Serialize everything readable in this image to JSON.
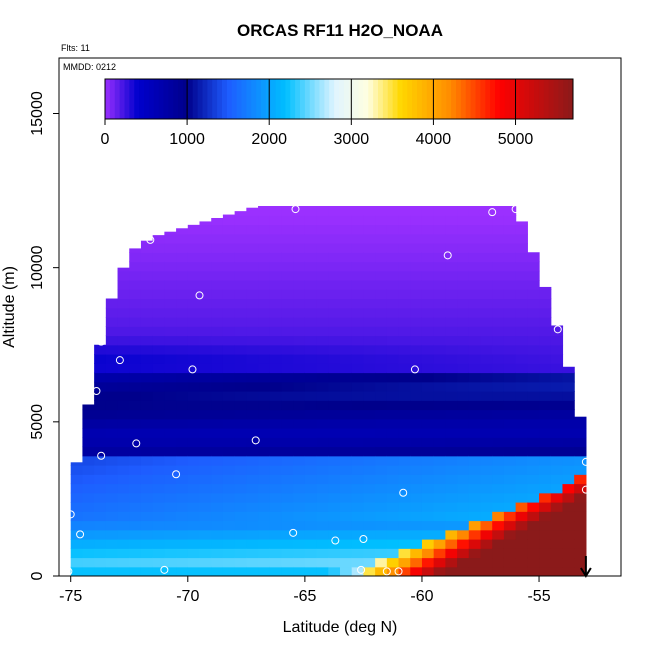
{
  "chart_data": {
    "type": "heatmap",
    "title": "ORCAS RF11 H2O_NOAA",
    "annotations": {
      "flights": "Flts: 11",
      "date": "MMDD: 0212"
    },
    "xlabel": "Latitude (deg N)",
    "ylabel": "Altitude (m)",
    "xlim": [
      -75.5,
      -51.5
    ],
    "ylim": [
      0,
      16800
    ],
    "x_ticks": [
      -75,
      -70,
      -65,
      -60,
      -55
    ],
    "x_tick_labels": [
      "-75",
      "-70",
      "-65",
      "-60",
      "-55"
    ],
    "y_ticks": [
      0,
      5000,
      10000,
      15000
    ],
    "y_tick_labels": [
      "0",
      "5000",
      "10000",
      "15000"
    ],
    "colorbar": {
      "range": [
        0,
        5700
      ],
      "ticks": [
        0,
        1000,
        2000,
        3000,
        4000,
        5000
      ],
      "tick_labels": [
        "0",
        "1000",
        "2000",
        "3000",
        "4000",
        "5000"
      ],
      "colors": [
        {
          "v": 0,
          "c": "#9b30ff"
        },
        {
          "v": 400,
          "c": "#0000cd"
        },
        {
          "v": 1000,
          "c": "#00008b"
        },
        {
          "v": 1500,
          "c": "#1e5cff"
        },
        {
          "v": 2200,
          "c": "#00bfff"
        },
        {
          "v": 2800,
          "c": "#e0f4ff"
        },
        {
          "v": 3200,
          "c": "#ffffe0"
        },
        {
          "v": 3600,
          "c": "#ffd700"
        },
        {
          "v": 4200,
          "c": "#ff8c00"
        },
        {
          "v": 4800,
          "c": "#ff0000"
        },
        {
          "v": 5700,
          "c": "#8b1a1a"
        }
      ]
    },
    "field_extent": {
      "lat_min": -75.0,
      "lat_max": -53.0,
      "top_profile": [
        {
          "lat": -75.0,
          "alt": 0
        },
        {
          "lat": -74.8,
          "alt": 3500
        },
        {
          "lat": -74.0,
          "alt": 6500
        },
        {
          "lat": -73.5,
          "alt": 8500
        },
        {
          "lat": -72.5,
          "alt": 10500
        },
        {
          "lat": -71.5,
          "alt": 11000
        },
        {
          "lat": -67.0,
          "alt": 12000
        },
        {
          "lat": -56.0,
          "alt": 12000
        },
        {
          "lat": -55.0,
          "alt": 10000
        },
        {
          "lat": -54.0,
          "alt": 7500
        },
        {
          "lat": -53.3,
          "alt": 5500
        },
        {
          "lat": -53.0,
          "alt": 3500
        }
      ]
    },
    "flight_track": [
      {
        "lat": -75.1,
        "alt": 150
      },
      {
        "lat": -75.0,
        "alt": 2000
      },
      {
        "lat": -74.6,
        "alt": 1350
      },
      {
        "lat": -73.7,
        "alt": 3900
      },
      {
        "lat": -73.9,
        "alt": 6000
      },
      {
        "lat": -73.7,
        "alt": 7600
      },
      {
        "lat": -72.9,
        "alt": 7000
      },
      {
        "lat": -72.2,
        "alt": 4300
      },
      {
        "lat": -71.0,
        "alt": 200
      },
      {
        "lat": -71.6,
        "alt": 10900
      },
      {
        "lat": -70.5,
        "alt": 3300
      },
      {
        "lat": -69.5,
        "alt": 9100
      },
      {
        "lat": -69.8,
        "alt": 6700
      },
      {
        "lat": -67.1,
        "alt": 4400
      },
      {
        "lat": -65.4,
        "alt": 11900
      },
      {
        "lat": -65.5,
        "alt": 1400
      },
      {
        "lat": -63.7,
        "alt": 1150
      },
      {
        "lat": -62.5,
        "alt": 1200
      },
      {
        "lat": -60.8,
        "alt": 2700
      },
      {
        "lat": -60.3,
        "alt": 6700
      },
      {
        "lat": -58.9,
        "alt": 10400
      },
      {
        "lat": -57.0,
        "alt": 11800
      },
      {
        "lat": -56.0,
        "alt": 11900
      },
      {
        "lat": -54.2,
        "alt": 8000
      },
      {
        "lat": -53.4,
        "alt": 7000
      },
      {
        "lat": -53.0,
        "alt": 3700
      },
      {
        "lat": -53.0,
        "alt": 2800
      },
      {
        "lat": -61.0,
        "alt": 150
      },
      {
        "lat": -61.5,
        "alt": 150
      },
      {
        "lat": -62.6,
        "alt": 200
      }
    ],
    "marker": {
      "lat": -53.0,
      "alt": 0,
      "symbol": "down-arrow"
    }
  }
}
